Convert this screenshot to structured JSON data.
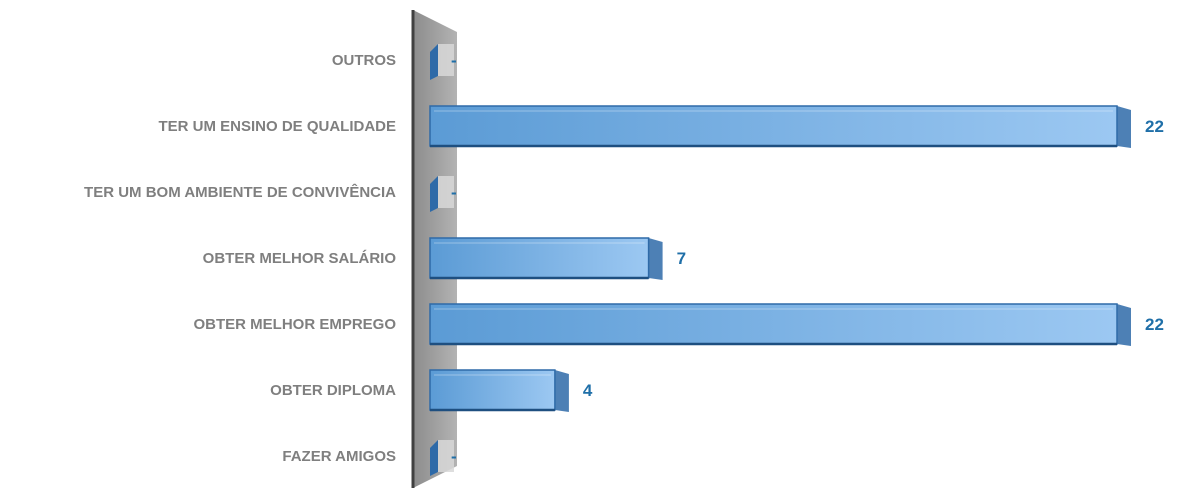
{
  "chart_data": {
    "type": "bar",
    "orientation": "horizontal",
    "categories": [
      "FAZER AMIGOS",
      "OBTER DIPLOMA",
      "OBTER MELHOR EMPREGO",
      "OBTER MELHOR SALÁRIO",
      "TER UM BOM AMBIENTE DE CONVIVÊNCIA",
      "TER UM ENSINO DE QUALIDADE",
      "OUTROS"
    ],
    "values": [
      0,
      4,
      22,
      7,
      0,
      22,
      0
    ],
    "value_labels": [
      "-",
      "4",
      "22",
      "7",
      "-",
      "22",
      "-"
    ],
    "xlim": [
      0,
      22
    ],
    "grid": false,
    "legend": "none",
    "colors": {
      "bar_light": "#9cc8f2",
      "bar_mid": "#5b9bd5",
      "bar_dark": "#2e6aa8",
      "wall": "#9a9a9a",
      "axis": "#404040",
      "category_text": "#7f7f7f",
      "value_text": "#1f6fa8"
    }
  }
}
